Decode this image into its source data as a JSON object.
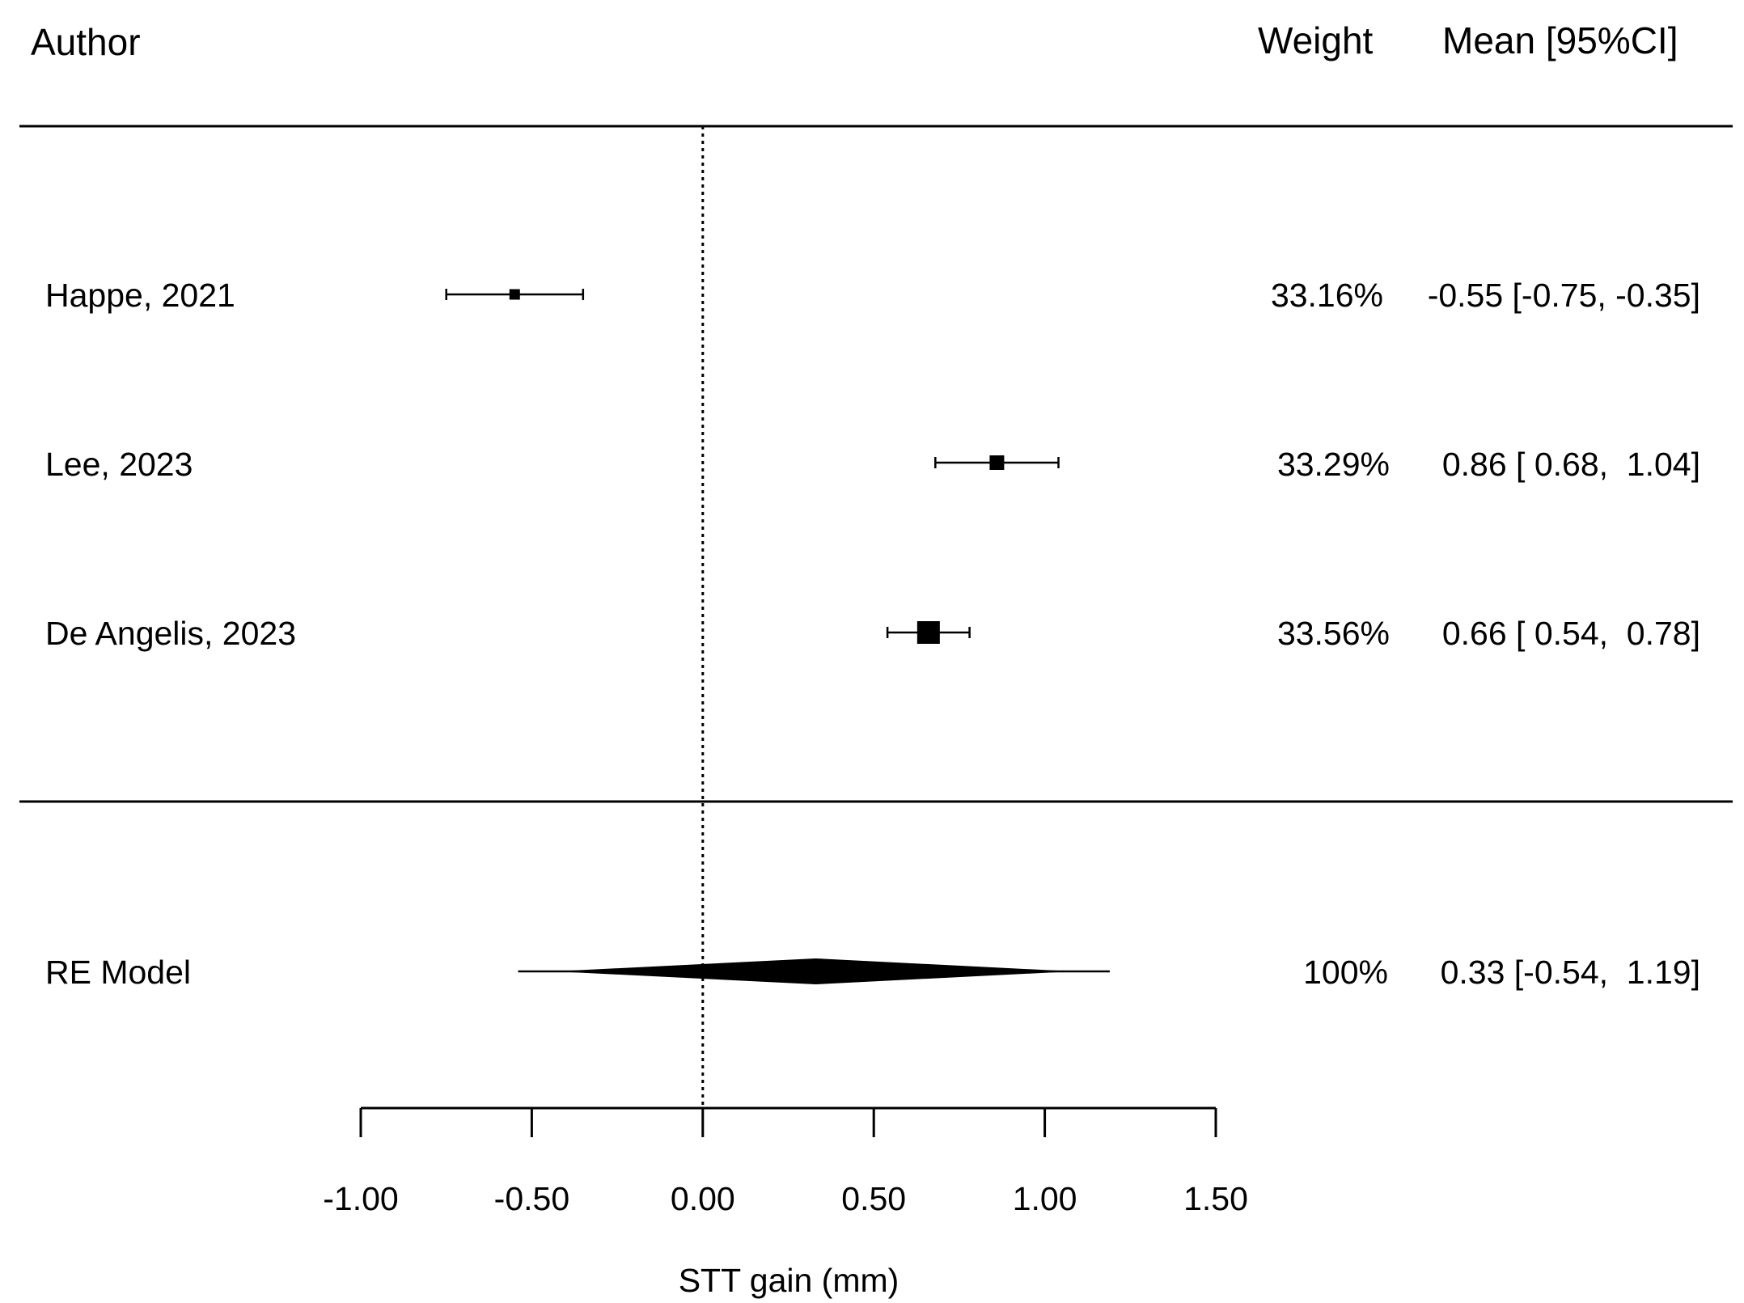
{
  "headers": {
    "author": "Author",
    "weight": "Weight",
    "mean_ci": "Mean [95%CI]"
  },
  "chart_data": {
    "type": "forest",
    "xlabel": "STT gain (mm)",
    "xlim": [
      -1.0,
      1.5
    ],
    "ticks": [
      -1.0,
      -0.5,
      0.0,
      0.5,
      1.0,
      1.5
    ],
    "tick_labels": [
      "-1.00",
      "-0.50",
      "0.00",
      "0.50",
      "1.00",
      "1.50"
    ],
    "reference_line": 0.0,
    "studies": [
      {
        "author": "Happe, 2021",
        "weight": "33.16%",
        "mean_ci": "-0.55 [-0.75, -0.35]",
        "mean": -0.55,
        "lower": -0.75,
        "upper": -0.35,
        "marker_size": 0.25
      },
      {
        "author": "Lee, 2023",
        "weight": "33.29%",
        "mean_ci": "0.86 [ 0.68,  1.04]",
        "mean": 0.86,
        "lower": 0.68,
        "upper": 1.04,
        "marker_size": 0.5
      },
      {
        "author": "De Angelis, 2023",
        "weight": "33.56%",
        "mean_ci": "0.66 [ 0.54,  0.78]",
        "mean": 0.66,
        "lower": 0.54,
        "upper": 0.78,
        "marker_size": 1.0
      }
    ],
    "summary": {
      "label": "RE Model",
      "weight": "100%",
      "mean_ci": "0.33 [-0.54,  1.19]",
      "mean": 0.33,
      "lower": -0.54,
      "upper": 1.19
    }
  }
}
